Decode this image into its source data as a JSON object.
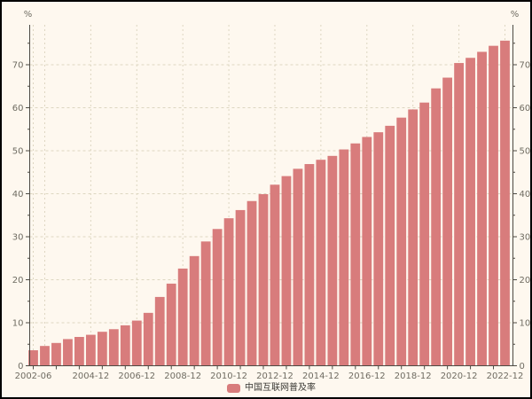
{
  "window": {
    "background_color": "#fef8ef",
    "border_color": "#000000"
  },
  "legend": {
    "label": "中国互联网普及率",
    "swatch_color": "#d87c7c"
  },
  "colors": {
    "bar": "#d87c7c",
    "background": "#fef8ef",
    "axis": "#4c4a43",
    "tick_label": "#6f6c62",
    "gridline": "#ddd6c1",
    "legend_text": "#3a3934"
  },
  "chart_data": {
    "type": "bar",
    "title": "",
    "series_name": "中国互联网普及率",
    "unit_label": "%",
    "categories": [
      "2002-06",
      "2002-12",
      "2003-06",
      "2003-12",
      "2004-06",
      "2004-12",
      "2005-06",
      "2005-12",
      "2006-06",
      "2006-12",
      "2007-06",
      "2007-12",
      "2008-06",
      "2008-12",
      "2009-06",
      "2009-12",
      "2010-06",
      "2010-12",
      "2011-06",
      "2011-12",
      "2012-06",
      "2012-12",
      "2013-06",
      "2013-12",
      "2014-06",
      "2014-12",
      "2015-06",
      "2015-12",
      "2016-06",
      "2016-12",
      "2017-06",
      "2017-12",
      "2018-06",
      "2018-12",
      "2019-06",
      "2019-12",
      "2020-06",
      "2020-12",
      "2021-06",
      "2021-12",
      "2022-06",
      "2022-12"
    ],
    "values": [
      3.6,
      4.6,
      5.3,
      6.2,
      6.7,
      7.2,
      7.9,
      8.5,
      9.4,
      10.5,
      12.3,
      16.0,
      19.1,
      22.6,
      25.5,
      28.9,
      31.8,
      34.3,
      36.2,
      38.3,
      39.9,
      42.1,
      44.1,
      45.8,
      46.9,
      47.9,
      48.8,
      50.3,
      51.7,
      53.2,
      54.3,
      55.8,
      57.7,
      59.6,
      61.2,
      64.5,
      67.0,
      70.4,
      71.6,
      73.0,
      74.4,
      75.6
    ],
    "ylim": [
      0,
      79
    ],
    "y_ticks": [
      0,
      10,
      20,
      30,
      40,
      50,
      60,
      70
    ],
    "y_minor_step": 5,
    "x_labeled_ticks": [
      "2002-06",
      "2004-12",
      "2006-12",
      "2008-12",
      "2010-12",
      "2012-12",
      "2014-12",
      "2016-12",
      "2018-12",
      "2020-12",
      "2022-12"
    ],
    "grid": "dashed",
    "legend_position": "bottom",
    "xlabel": "",
    "ylabel": "%"
  }
}
